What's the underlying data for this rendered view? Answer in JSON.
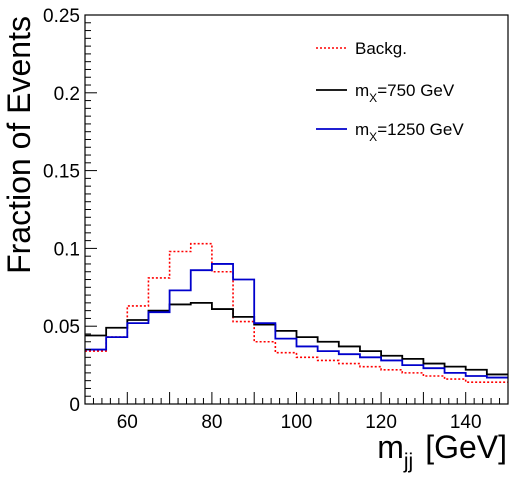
{
  "chart_data": {
    "type": "histogram",
    "xlabel": "m",
    "xlabel_sub": "jj",
    "xlabel_unit": "[GeV]",
    "ylabel": "Fraction of Events",
    "xlim": [
      50,
      150
    ],
    "ylim": [
      0,
      0.25
    ],
    "x_ticks": [
      60,
      80,
      100,
      120,
      140
    ],
    "y_ticks": [
      0,
      0.05,
      0.1,
      0.15,
      0.2,
      0.25
    ],
    "y_tick_labels": [
      "0",
      "0.05",
      "0.1",
      "0.15",
      "0.2",
      "0.25"
    ],
    "grid": false,
    "legend_position": "top-right",
    "bin_edges": [
      50,
      55,
      60,
      65,
      70,
      75,
      80,
      85,
      90,
      95,
      100,
      105,
      110,
      115,
      120,
      125,
      130,
      135,
      140,
      145,
      150
    ],
    "series": [
      {
        "name": "Backg.",
        "legend_parts": [
          "Backg."
        ],
        "color": "#ff0000",
        "style": "dotted",
        "values": [
          0.034,
          0.043,
          0.063,
          0.081,
          0.098,
          0.103,
          0.085,
          0.053,
          0.04,
          0.033,
          0.03,
          0.028,
          0.026,
          0.024,
          0.022,
          0.02,
          0.018,
          0.016,
          0.014,
          0.014
        ]
      },
      {
        "name": "mX=750 GeV",
        "legend_parts": [
          "m",
          "X",
          "=750 GeV"
        ],
        "color": "#000000",
        "style": "solid",
        "values": [
          0.044,
          0.049,
          0.054,
          0.06,
          0.064,
          0.065,
          0.061,
          0.056,
          0.051,
          0.047,
          0.043,
          0.04,
          0.037,
          0.034,
          0.031,
          0.029,
          0.026,
          0.024,
          0.022,
          0.019
        ]
      },
      {
        "name": "mX=1250 GeV",
        "legend_parts": [
          "m",
          "X",
          "=1250 GeV"
        ],
        "color": "#0000cc",
        "style": "solid",
        "values": [
          0.035,
          0.043,
          0.052,
          0.059,
          0.073,
          0.086,
          0.09,
          0.08,
          0.052,
          0.042,
          0.037,
          0.034,
          0.032,
          0.03,
          0.028,
          0.025,
          0.023,
          0.02,
          0.018,
          0.017
        ]
      }
    ]
  }
}
